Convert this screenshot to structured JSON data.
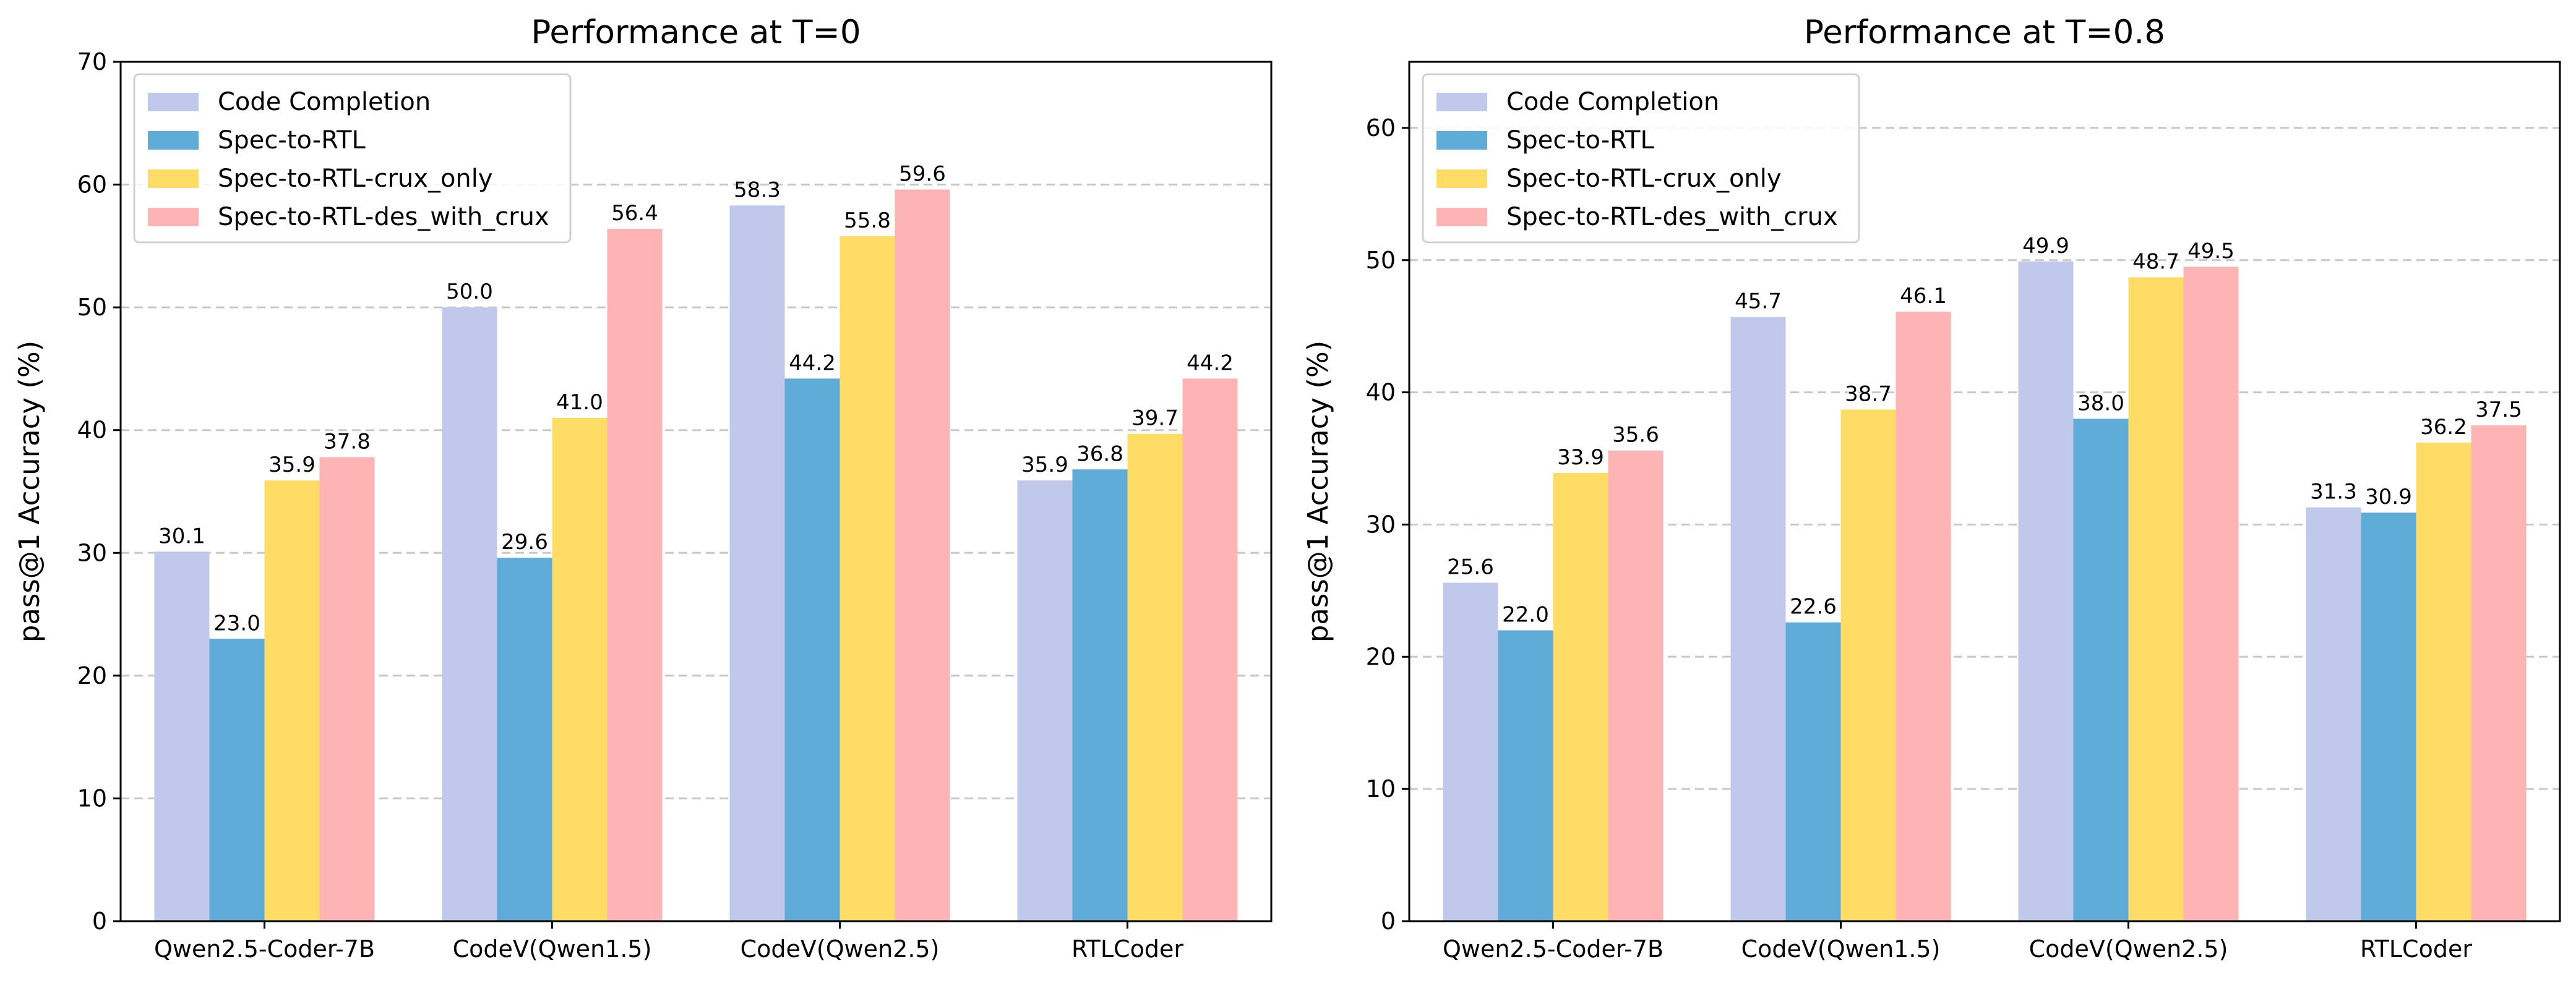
{
  "chart_data": [
    {
      "type": "bar",
      "title": "Performance at T=0",
      "xlabel": "",
      "ylabel": "pass@1 Accuracy (%)",
      "ylim": [
        0,
        70
      ],
      "yticks": [
        0,
        10,
        20,
        30,
        40,
        50,
        60,
        70
      ],
      "grid": "y-dashed",
      "legend_position": "top-left",
      "categories": [
        "Qwen2.5-Coder-7B",
        "CodeV(Qwen1.5)",
        "CodeV(Qwen2.5)",
        "RTLCoder"
      ],
      "series": [
        {
          "name": "Code Completion",
          "color": "#c0c8ec",
          "values": [
            30.1,
            50.0,
            58.3,
            35.9
          ],
          "labels": [
            "30.1",
            "50.0",
            "58.3",
            "35.9"
          ]
        },
        {
          "name": "Spec-to-RTL",
          "color": "#60acd8",
          "values": [
            23.0,
            29.6,
            44.2,
            36.8
          ],
          "labels": [
            "23.0",
            "29.6",
            "44.2",
            "36.8"
          ]
        },
        {
          "name": "Spec-to-RTL-crux_only",
          "color": "#fedc66",
          "values": [
            35.9,
            41.0,
            55.8,
            39.7
          ],
          "labels": [
            "35.9",
            "41.0",
            "55.8",
            "39.7"
          ]
        },
        {
          "name": "Spec-to-RTL-des_with_crux",
          "color": "#feb3b5",
          "values": [
            37.8,
            56.4,
            59.6,
            44.2
          ],
          "labels": [
            "37.8",
            "56.4",
            "59.6",
            "44.2"
          ]
        }
      ]
    },
    {
      "type": "bar",
      "title": "Performance at T=0.8",
      "xlabel": "",
      "ylabel": "pass@1 Accuracy (%)",
      "ylim": [
        0,
        65
      ],
      "yticks": [
        0,
        10,
        20,
        30,
        40,
        50,
        60
      ],
      "grid": "y-dashed",
      "legend_position": "top-left",
      "categories": [
        "Qwen2.5-Coder-7B",
        "CodeV(Qwen1.5)",
        "CodeV(Qwen2.5)",
        "RTLCoder"
      ],
      "series": [
        {
          "name": "Code Completion",
          "color": "#c0c8ec",
          "values": [
            25.6,
            45.7,
            49.9,
            31.3
          ],
          "labels": [
            "25.6",
            "45.7",
            "49.9",
            "31.3"
          ]
        },
        {
          "name": "Spec-to-RTL",
          "color": "#60acd8",
          "values": [
            22.0,
            22.6,
            38.0,
            30.9
          ],
          "labels": [
            "22.0",
            "22.6",
            "38.0",
            "30.9"
          ]
        },
        {
          "name": "Spec-to-RTL-crux_only",
          "color": "#fedc66",
          "values": [
            33.9,
            38.7,
            48.7,
            36.2
          ],
          "labels": [
            "33.9",
            "38.7",
            "48.7",
            "36.2"
          ]
        },
        {
          "name": "Spec-to-RTL-des_with_crux",
          "color": "#feb3b5",
          "values": [
            35.6,
            46.1,
            49.5,
            37.5
          ],
          "labels": [
            "35.6",
            "46.1",
            "49.5",
            "37.5"
          ]
        }
      ]
    }
  ]
}
